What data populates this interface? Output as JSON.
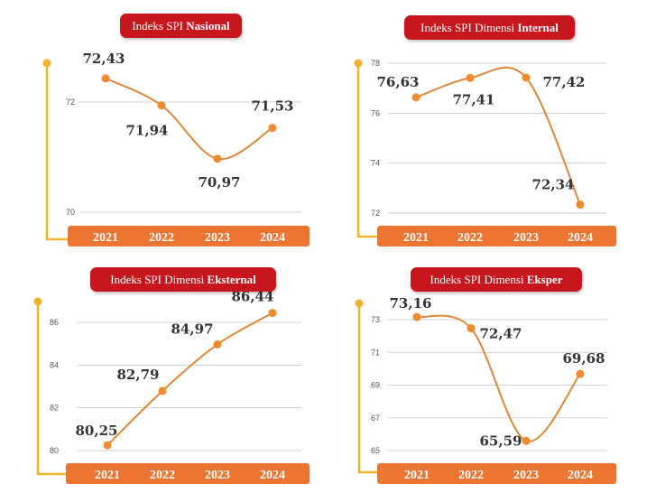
{
  "colors": {
    "line": "#e0883a",
    "point": "#ef8a2e",
    "axis_bar": "#ec7532",
    "frame": "#f0b32e",
    "title_bg": "#c8161e",
    "grid": "#d0d0d0",
    "value_text": "#333333"
  },
  "chart_data": [
    {
      "type": "line",
      "title_prefix": "Indeks SPI ",
      "title_bold": "Nasional",
      "categories": [
        "2021",
        "2022",
        "2023",
        "2024"
      ],
      "values": [
        72.43,
        71.94,
        70.97,
        71.53
      ],
      "value_labels": [
        "72,43",
        "71,94",
        "70,97",
        "71,53"
      ],
      "yticks": [
        "70",
        "72"
      ],
      "ylim": [
        70,
        72.5
      ],
      "grid": true
    },
    {
      "type": "line",
      "title_prefix": "Indeks SPI Dimensi ",
      "title_bold": "Internal",
      "categories": [
        "2021",
        "2022",
        "2023",
        "2024"
      ],
      "values": [
        76.63,
        77.41,
        77.42,
        72.34
      ],
      "value_labels": [
        "76,63",
        "77,41",
        "77,42",
        "72,34"
      ],
      "yticks": [
        "72",
        "74",
        "76",
        "78"
      ],
      "ylim": [
        72,
        78
      ],
      "grid": true
    },
    {
      "type": "line",
      "title_prefix": "Indeks SPI Dimensi ",
      "title_bold": "Eksternal",
      "categories": [
        "2021",
        "2022",
        "2023",
        "2024"
      ],
      "values": [
        80.25,
        82.79,
        84.97,
        86.44
      ],
      "value_labels": [
        "80,25",
        "82,79",
        "84,97",
        "86,44"
      ],
      "yticks": [
        "80",
        "82",
        "84",
        "86"
      ],
      "ylim": [
        80,
        86.5
      ],
      "grid": true
    },
    {
      "type": "line",
      "title_prefix": "Indeks SPI Dimensi ",
      "title_bold": "Eksper",
      "categories": [
        "2021",
        "2022",
        "2023",
        "2024"
      ],
      "values": [
        73.16,
        72.47,
        65.59,
        69.68
      ],
      "value_labels": [
        "73,16",
        "72,47",
        "65,59",
        "69,68"
      ],
      "yticks": [
        "65",
        "67",
        "69",
        "71",
        "73"
      ],
      "ylim": [
        65,
        73.5
      ],
      "grid": true
    }
  ]
}
